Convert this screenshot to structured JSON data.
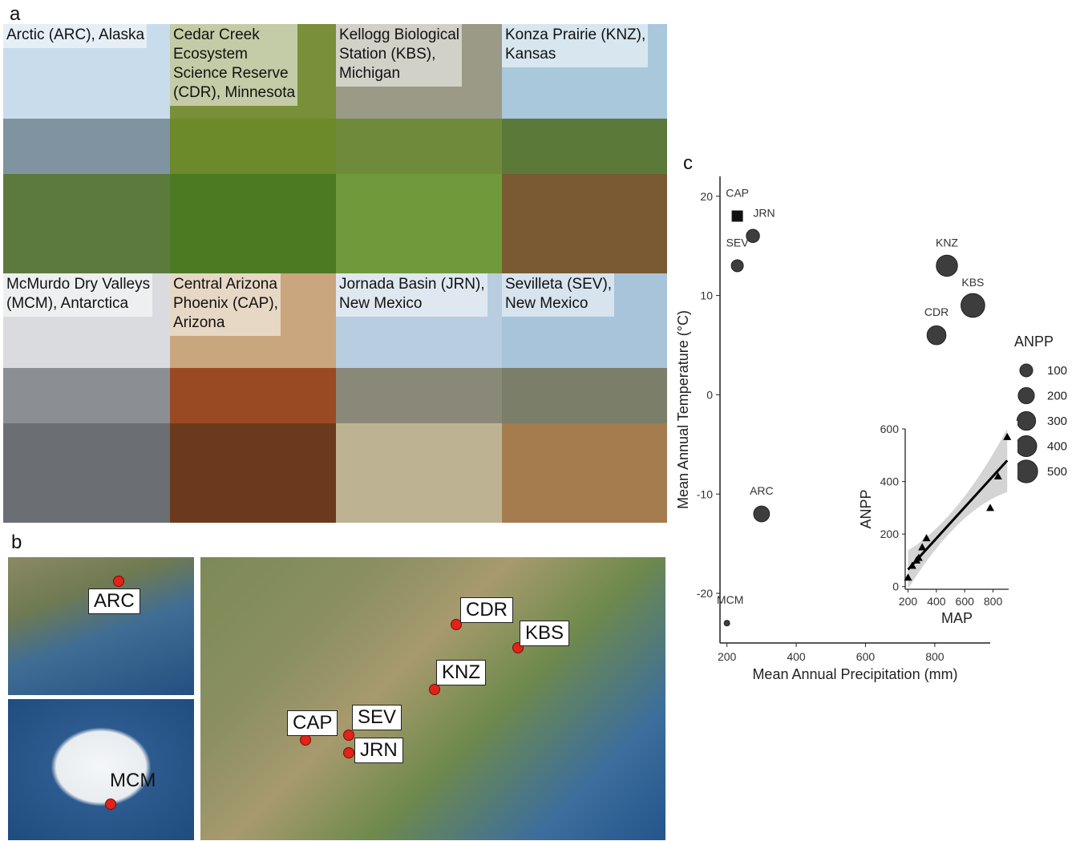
{
  "panels": {
    "a": "a",
    "b": "b",
    "c": "c"
  },
  "photos": [
    {
      "caption": "Arctic (ARC), Alaska",
      "sky": "#c8dcec",
      "mid": "#7f93a0",
      "ground": "#5d7a3e"
    },
    {
      "caption": "Cedar Creek\nEcosystem\nScience Reserve\n(CDR), Minnesota",
      "sky": "#7a8f3a",
      "mid": "#6c8a2a",
      "ground": "#4c7a23"
    },
    {
      "caption": "Kellogg Biological\nStation (KBS),\nMichigan",
      "sky": "#9a9a86",
      "mid": "#6f8a3a",
      "ground": "#6e9a3c"
    },
    {
      "caption": "Konza Prairie (KNZ),\nKansas",
      "sky": "#a9c8dc",
      "mid": "#5b7a3a",
      "ground": "#7a5a32"
    },
    {
      "caption": "McMurdo Dry Valleys\n(MCM), Antarctica",
      "sky": "#d9dbdf",
      "mid": "#8b8e92",
      "ground": "#6b6f73"
    },
    {
      "caption": "Central Arizona\nPhoenix (CAP),\nArizona",
      "sky": "#c9a67e",
      "mid": "#9a4a22",
      "ground": "#6b3a1c"
    },
    {
      "caption": "Jornada Basin (JRN),\nNew Mexico",
      "sky": "#b9cde0",
      "mid": "#8a8878",
      "ground": "#bdb392"
    },
    {
      "caption": "Sevilleta (SEV),\nNew Mexico",
      "sky": "#a7c4da",
      "mid": "#7b7e68",
      "ground": "#a57c4e"
    }
  ],
  "map_labels": {
    "arc": "ARC",
    "mcm": "MCM",
    "cdr": "CDR",
    "kbs": "KBS",
    "knz": "KNZ",
    "cap": "CAP",
    "sev": "SEV",
    "jrn": "JRN"
  },
  "chart_data": [
    {
      "type": "scatter",
      "xlabel": "Mean Annual Precipitation (mm)",
      "ylabel": "Mean Annual Temperature (°C)",
      "xlim": [
        180,
        960
      ],
      "ylim": [
        -25,
        22
      ],
      "xticks": [
        200,
        400,
        600,
        800
      ],
      "yticks": [
        -20,
        -10,
        0,
        10,
        20
      ],
      "size_legend_title": "ANPP",
      "size_legend_values": [
        100,
        200,
        300,
        400,
        500
      ],
      "points": [
        {
          "label": "CAP",
          "x": 230,
          "y": 18,
          "anpp": 150,
          "marker": "square"
        },
        {
          "label": "JRN",
          "x": 275,
          "y": 16,
          "anpp": 110,
          "marker": "circle"
        },
        {
          "label": "SEV",
          "x": 230,
          "y": 13,
          "anpp": 80,
          "marker": "circle"
        },
        {
          "label": "KNZ",
          "x": 835,
          "y": 13,
          "anpp": 420,
          "marker": "circle"
        },
        {
          "label": "KBS",
          "x": 910,
          "y": 9,
          "anpp": 560,
          "marker": "circle"
        },
        {
          "label": "CDR",
          "x": 805,
          "y": 6,
          "anpp": 310,
          "marker": "circle"
        },
        {
          "label": "ARC",
          "x": 300,
          "y": -12,
          "anpp": 190,
          "marker": "circle"
        },
        {
          "label": "MCM",
          "x": 200,
          "y": -23,
          "anpp": 1,
          "marker": "circle"
        }
      ],
      "axis_color": "#222222",
      "point_color": "#3d3d3d"
    },
    {
      "type": "scatter",
      "inset": true,
      "xlabel": "MAP",
      "ylabel": "ANPP",
      "xlim": [
        180,
        910
      ],
      "ylim": [
        -10,
        600
      ],
      "xticks": [
        200,
        400,
        600,
        800
      ],
      "yticks": [
        0,
        200,
        400,
        600
      ],
      "points": [
        {
          "x": 200,
          "y": 35
        },
        {
          "x": 230,
          "y": 80
        },
        {
          "x": 260,
          "y": 100
        },
        {
          "x": 275,
          "y": 110
        },
        {
          "x": 300,
          "y": 150
        },
        {
          "x": 330,
          "y": 185
        },
        {
          "x": 780,
          "y": 300
        },
        {
          "x": 835,
          "y": 420
        },
        {
          "x": 900,
          "y": 570
        }
      ],
      "fit_line": {
        "x": [
          200,
          900
        ],
        "y": [
          65,
          480
        ]
      },
      "band_color": "#d4d4d4",
      "line_color": "#000000"
    }
  ]
}
